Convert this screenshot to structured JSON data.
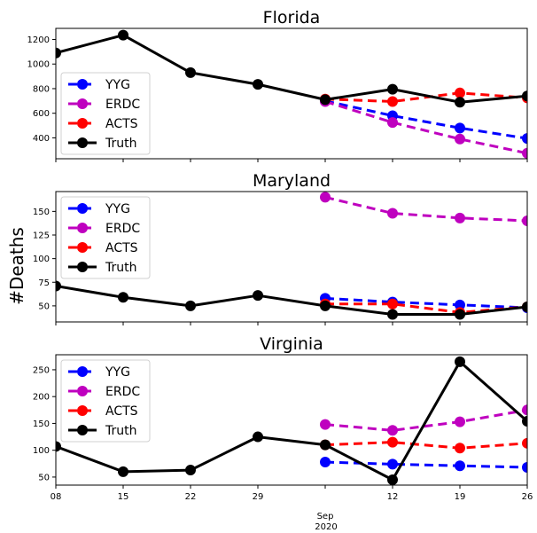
{
  "chart_data": {
    "type": "line",
    "ylabel": "#Deaths",
    "x_ticks": [
      "08",
      "15",
      "22",
      "29",
      "Sep",
      "12",
      "19",
      "26"
    ],
    "x_year_label": "2020",
    "x_dates": [
      "2020-08-08",
      "2020-08-15",
      "2020-08-22",
      "2020-08-29",
      "2020-09-05",
      "2020-09-12",
      "2020-09-19",
      "2020-09-26"
    ],
    "colors": {
      "YYG": "#0000ff",
      "ERDC": "#bf00bf",
      "ACTS": "#ff0000",
      "Truth": "#000000"
    },
    "legend_location": "lower-left (Florida), upper-left (Maryland, Virginia)",
    "panels": [
      {
        "title": "Florida",
        "ylim": [
          230,
          1290
        ],
        "yticks": [
          400,
          600,
          800,
          1000,
          1200
        ],
        "series": [
          {
            "name": "YYG",
            "x": [
              "2020-09-05",
              "2020-09-12",
              "2020-09-19",
              "2020-09-26"
            ],
            "values": [
              700,
              580,
              480,
              395
            ],
            "style": "dashed"
          },
          {
            "name": "ERDC",
            "x": [
              "2020-09-05",
              "2020-09-12",
              "2020-09-19",
              "2020-09-26"
            ],
            "values": [
              695,
              525,
              390,
              275
            ],
            "style": "dashed"
          },
          {
            "name": "ACTS",
            "x": [
              "2020-09-05",
              "2020-09-12",
              "2020-09-19",
              "2020-09-26"
            ],
            "values": [
              715,
              695,
              765,
              725
            ],
            "style": "dashed"
          },
          {
            "name": "Truth",
            "x": [
              "2020-08-08",
              "2020-08-15",
              "2020-08-22",
              "2020-08-29",
              "2020-09-05",
              "2020-09-12",
              "2020-09-19",
              "2020-09-26"
            ],
            "values": [
              1090,
              1235,
              930,
              835,
              710,
              795,
              690,
              740
            ],
            "style": "solid"
          }
        ]
      },
      {
        "title": "Maryland",
        "ylim": [
          33,
          171
        ],
        "yticks": [
          50,
          75,
          100,
          125,
          150
        ],
        "series": [
          {
            "name": "YYG",
            "x": [
              "2020-09-05",
              "2020-09-12",
              "2020-09-19",
              "2020-09-26"
            ],
            "values": [
              58,
              54,
              51,
              48
            ],
            "style": "dashed"
          },
          {
            "name": "ERDC",
            "x": [
              "2020-09-05",
              "2020-09-12",
              "2020-09-19",
              "2020-09-26"
            ],
            "values": [
              165,
              148,
              143,
              140
            ],
            "style": "dashed"
          },
          {
            "name": "ACTS",
            "x": [
              "2020-09-05",
              "2020-09-12",
              "2020-09-19",
              "2020-09-26"
            ],
            "values": [
              52,
              52,
              43,
              49
            ],
            "style": "dashed"
          },
          {
            "name": "Truth",
            "x": [
              "2020-08-08",
              "2020-08-15",
              "2020-08-22",
              "2020-08-29",
              "2020-09-05",
              "2020-09-12",
              "2020-09-19",
              "2020-09-26"
            ],
            "values": [
              71,
              59,
              50,
              61,
              50,
              41,
              41,
              49
            ],
            "style": "solid"
          }
        ]
      },
      {
        "title": "Virginia",
        "ylim": [
          35,
          278
        ],
        "yticks": [
          50,
          100,
          150,
          200,
          250
        ],
        "series": [
          {
            "name": "YYG",
            "x": [
              "2020-09-05",
              "2020-09-12",
              "2020-09-19",
              "2020-09-26"
            ],
            "values": [
              78,
              74,
              71,
              68
            ],
            "style": "dashed"
          },
          {
            "name": "ERDC",
            "x": [
              "2020-09-05",
              "2020-09-12",
              "2020-09-19",
              "2020-09-26"
            ],
            "values": [
              148,
              137,
              153,
              175
            ],
            "style": "dashed"
          },
          {
            "name": "ACTS",
            "x": [
              "2020-09-05",
              "2020-09-12",
              "2020-09-19",
              "2020-09-26"
            ],
            "values": [
              110,
              115,
              104,
              113
            ],
            "style": "dashed"
          },
          {
            "name": "Truth",
            "x": [
              "2020-08-08",
              "2020-08-15",
              "2020-08-22",
              "2020-08-29",
              "2020-09-05",
              "2020-09-12",
              "2020-09-19",
              "2020-09-26"
            ],
            "values": [
              107,
              60,
              63,
              125,
              110,
              45,
              265,
              154
            ],
            "style": "solid"
          }
        ]
      }
    ]
  }
}
